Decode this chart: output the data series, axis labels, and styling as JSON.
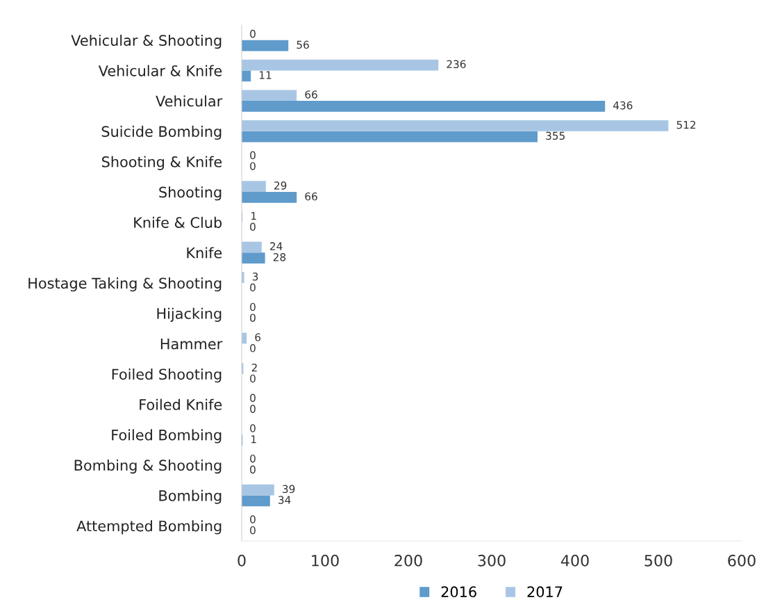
{
  "chart_data": {
    "type": "bar",
    "orientation": "horizontal",
    "categories": [
      "Vehicular & Shooting",
      "Vehicular & Knife",
      "Vehicular",
      "Suicide Bombing",
      "Shooting & Knife",
      "Shooting",
      "Knife & Club",
      "Knife",
      "Hostage Taking & Shooting",
      "Hijacking",
      "Hammer",
      "Foiled Shooting",
      "Foiled Knife",
      "Foiled Bombing",
      "Bombing & Shooting",
      "Bombing",
      "Attempted Bombing"
    ],
    "series": [
      {
        "name": "2016",
        "color": "#5f9bcb",
        "values": [
          56,
          11,
          436,
          355,
          0,
          66,
          0,
          28,
          0,
          0,
          0,
          0,
          0,
          1,
          0,
          34,
          0
        ]
      },
      {
        "name": "2017",
        "color": "#a8c6e4",
        "values": [
          0,
          236,
          66,
          512,
          0,
          29,
          1,
          24,
          3,
          0,
          6,
          2,
          0,
          0,
          0,
          39,
          0
        ]
      }
    ],
    "xlim": [
      0,
      600
    ],
    "xticks": [
      0,
      100,
      200,
      300,
      400,
      500,
      600
    ],
    "grid": false,
    "legend": "bottom",
    "data_labels": true
  }
}
